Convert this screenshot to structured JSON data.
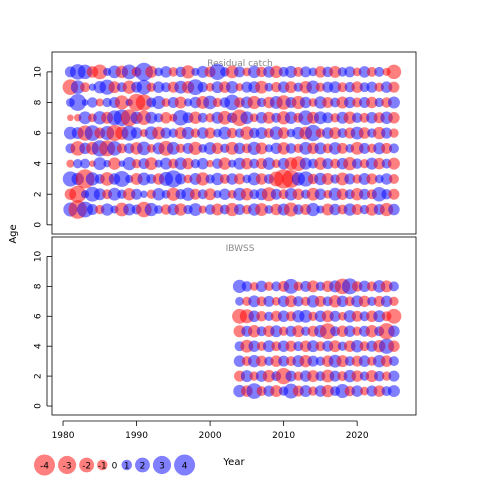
{
  "chart_data": {
    "type": "scatter",
    "variant": "bubble-residuals",
    "xlabel": "Year",
    "ylabel": "Age",
    "xlim": [
      1978.5,
      2028
    ],
    "ylim": [
      -0.6,
      11.3
    ],
    "x_ticks": [
      1980,
      1990,
      2000,
      2010,
      2020
    ],
    "y_ticks": [
      0,
      2,
      4,
      6,
      8,
      10
    ],
    "colors": {
      "positive": "#0000ff",
      "negative": "#ff0000",
      "panel_title": "#888888"
    },
    "panels": [
      {
        "title": "Residual catch",
        "years": [
          1981,
          2025
        ],
        "ages": [
          1,
          10
        ],
        "residuals": [
          [
            1.8,
            -1.2,
            2.1,
            -0.6,
            0.9,
            1.5,
            -0.4,
            0.7,
            -2.2,
            1.1
          ],
          [
            -3.1,
            -2.6,
            1.4,
            0.8,
            -1.9,
            1.3,
            -0.5,
            2.6,
            1.7,
            2.2
          ],
          [
            2.3,
            0.6,
            -3.3,
            0.9,
            1.2,
            -2.1,
            1.5,
            0.4,
            -0.9,
            1.9
          ],
          [
            1.1,
            2.0,
            1.6,
            -0.4,
            -1.5,
            2.2,
            -0.7,
            1.0,
            0.5,
            -1.2
          ],
          [
            -0.8,
            1.3,
            0.9,
            1.5,
            2.4,
            -1.1,
            1.6,
            -0.6,
            1.4,
            -2.0
          ],
          [
            1.4,
            -0.9,
            -1.7,
            0.5,
            -2.3,
            1.8,
            -1.3,
            0.8,
            2.1,
            0.6
          ],
          [
            0.6,
            1.5,
            1.2,
            -1.4,
            1.9,
            -2.4,
            2.0,
            1.1,
            -1.3,
            1.5
          ],
          [
            -1.7,
            0.8,
            2.3,
            0.4,
            -0.9,
            -1.6,
            2.5,
            -1.8,
            0.9,
            -1.4
          ],
          [
            1.3,
            -1.4,
            0.6,
            1.6,
            1.0,
            2.1,
            -2.6,
            0.5,
            -1.6,
            2.0
          ],
          [
            0.9,
            1.1,
            -1.3,
            -0.8,
            -1.4,
            1.2,
            1.4,
            -2.7,
            1.1,
            -0.9
          ],
          [
            -2.2,
            0.5,
            1.5,
            1.1,
            1.7,
            -0.6,
            -1.9,
            -2.4,
            2.0,
            3.0
          ],
          [
            1.6,
            -0.8,
            0.9,
            -1.5,
            -0.7,
            1.6,
            1.3,
            0.9,
            -0.8,
            -1.3
          ],
          [
            0.7,
            1.4,
            -1.2,
            0.6,
            1.3,
            -1.5,
            0.8,
            1.6,
            1.2,
            0.7
          ],
          [
            -1.0,
            0.7,
            1.8,
            1.3,
            -2.0,
            1.1,
            -1.2,
            -0.7,
            0.9,
            1.2
          ],
          [
            1.2,
            -1.6,
            2.7,
            -0.9,
            1.5,
            0.8,
            -0.6,
            1.1,
            -1.1,
            -0.8
          ],
          [
            -1.4,
            1.0,
            1.1,
            1.4,
            -0.8,
            -1.3,
            2.2,
            -1.3,
            1.5,
            1.0
          ],
          [
            0.8,
            1.6,
            -0.7,
            -1.2,
            1.1,
            1.4,
            1.1,
            0.6,
            -1.4,
            -1.6
          ],
          [
            1.5,
            -1.1,
            1.3,
            0.8,
            -1.6,
            -0.8,
            -1.4,
            1.2,
            2.3,
            0.6
          ],
          [
            -0.6,
            0.9,
            -1.6,
            1.2,
            0.7,
            1.2,
            0.9,
            -1.5,
            1.0,
            1.3
          ],
          [
            1.0,
            -1.3,
            0.8,
            -0.5,
            1.4,
            -1.1,
            -0.8,
            1.7,
            -0.7,
            -1.1
          ],
          [
            -1.3,
            0.6,
            1.4,
            1.0,
            -1.2,
            0.7,
            1.3,
            -0.8,
            1.3,
            2.4
          ],
          [
            0.9,
            1.2,
            -0.9,
            -1.4,
            0.8,
            1.5,
            -1.7,
            1.0,
            -1.2,
            0.8
          ],
          [
            -1.6,
            -0.7,
            1.2,
            0.6,
            -1.5,
            -1.0,
            1.0,
            2.2,
            1.4,
            -1.5
          ],
          [
            1.1,
            1.5,
            -1.1,
            1.3,
            1.2,
            0.8,
            -2.5,
            -1.0,
            -0.6,
            1.1
          ],
          [
            -0.8,
            -1.4,
            0.7,
            -1.2,
            -0.9,
            -1.6,
            1.5,
            1.3,
            1.1,
            -0.7
          ],
          [
            1.4,
            0.9,
            1.5,
            0.9,
            1.6,
            1.0,
            -0.7,
            -1.6,
            1.3,
            1.4
          ],
          [
            -1.5,
            1.3,
            -1.2,
            -1.1,
            -1.3,
            1.3,
            1.2,
            0.8,
            -1.5,
            -1.0
          ],
          [
            0.7,
            -1.8,
            0.9,
            1.4,
            0.6,
            -0.9,
            -1.3,
            -1.2,
            0.7,
            1.2
          ],
          [
            -1.2,
            1.1,
            -2.0,
            -0.7,
            1.2,
            1.6,
            0.9,
            1.5,
            -1.0,
            -1.4
          ],
          [
            1.3,
            -0.9,
            -3.4,
            1.2,
            -1.4,
            -1.2,
            -1.6,
            -1.9,
            1.2,
            0.9
          ],
          [
            -1.8,
            1.4,
            -2.9,
            -1.5,
            1.0,
            0.7,
            1.4,
            1.1,
            -1.3,
            1.3
          ],
          [
            1.0,
            -1.2,
            1.6,
            -2.0,
            -0.8,
            1.4,
            -0.9,
            -1.6,
            0.8,
            -0.9
          ],
          [
            -1.1,
            0.8,
            2.1,
            1.3,
            1.5,
            -1.5,
            2.0,
            1.2,
            -1.4,
            1.1
          ],
          [
            1.6,
            -1.5,
            -1.0,
            0.9,
            -1.2,
            2.4,
            -1.3,
            -0.7,
            1.6,
            0.7
          ],
          [
            0.6,
            1.2,
            1.4,
            -1.4,
            1.3,
            -0.8,
            1.5,
            1.4,
            -0.8,
            -1.2
          ],
          [
            -1.3,
            -0.7,
            -1.3,
            1.1,
            -0.9,
            1.2,
            1.1,
            -1.1,
            1.1,
            1.0
          ],
          [
            1.2,
            1.5,
            0.8,
            -0.9,
            1.4,
            -1.3,
            -0.8,
            0.9,
            1.3,
            -1.3
          ],
          [
            -0.9,
            -1.2,
            -1.5,
            1.2,
            -1.1,
            0.9,
            1.3,
            -1.3,
            -0.9,
            0.8
          ],
          [
            1.4,
            0.9,
            1.1,
            -1.6,
            0.7,
            -1.1,
            -1.4,
            1.2,
            1.0,
            1.1
          ],
          [
            -1.1,
            -1.4,
            -0.8,
            1.0,
            -1.5,
            1.5,
            1.0,
            -0.9,
            -1.2,
            -0.7
          ],
          [
            0.8,
            1.1,
            1.3,
            -0.8,
            1.1,
            -1.2,
            -0.9,
            1.1,
            0.9,
            1.2
          ],
          [
            -1.4,
            -0.9,
            -1.1,
            1.3,
            -0.8,
            0.8,
            1.2,
            -1.2,
            1.1,
            -0.9
          ],
          [
            1.1,
            1.9,
            0.7,
            -1.2,
            1.3,
            -1.4,
            -1.1,
            0.8,
            -0.8,
            0.9
          ],
          [
            -1.6,
            1.0,
            1.2,
            0.9,
            -1.1,
            1.1,
            1.4,
            -1.0,
            1.2,
            -0.6
          ],
          [
            1.2,
            -1.1,
            -0.9,
            -1.3,
            0.9,
            -0.8,
            -1.2,
            1.3,
            -1.1,
            -1.9
          ]
        ]
      },
      {
        "title": "IBWSS",
        "years": [
          2004,
          2025
        ],
        "ages": [
          1,
          8
        ],
        "residuals": [
          [
            1.4,
            -1.1,
            1.2,
            0.9,
            -1.3,
            -2.0,
            0.7,
            1.6
          ],
          [
            -1.2,
            1.3,
            -0.9,
            -1.5,
            1.1,
            -1.8,
            -0.8,
            1.0
          ],
          [
            2.2,
            -0.8,
            1.4,
            1.2,
            -1.4,
            1.2,
            1.3,
            -0.7
          ],
          [
            -0.9,
            1.2,
            -1.1,
            -0.8,
            0.9,
            -1.0,
            -0.9,
            1.2
          ],
          [
            1.1,
            -1.4,
            0.8,
            1.3,
            -1.2,
            0.8,
            1.1,
            -0.8
          ],
          [
            -1.3,
            0.9,
            -1.2,
            -0.9,
            1.3,
            -1.1,
            -0.7,
            0.9
          ],
          [
            0.8,
            -2.4,
            1.1,
            1.2,
            -0.8,
            1.2,
            1.2,
            -1.1
          ],
          [
            2.0,
            1.1,
            -0.9,
            -1.1,
            1.1,
            -0.9,
            -1.3,
            2.0
          ],
          [
            -1.1,
            -0.8,
            1.3,
            0.9,
            -1.3,
            1.4,
            1.0,
            -0.8
          ],
          [
            1.3,
            1.2,
            -1.4,
            -1.2,
            0.8,
            1.5,
            -0.8,
            1.1
          ],
          [
            -0.8,
            -1.3,
            1.1,
            1.3,
            -1.1,
            -0.8,
            1.4,
            -1.3
          ],
          [
            1.2,
            0.9,
            0.8,
            -0.9,
            1.4,
            1.2,
            -1.1,
            0.8
          ],
          [
            -1.4,
            -1.5,
            -1.2,
            1.1,
            -2.3,
            -1.3,
            0.9,
            -1.2
          ],
          [
            0.9,
            1.1,
            1.5,
            -1.3,
            0.9,
            1.1,
            -1.4,
            1.3
          ],
          [
            1.8,
            -0.9,
            -1.3,
            0.8,
            -1.2,
            -0.7,
            1.2,
            -2.2
          ],
          [
            -1.0,
            1.4,
            0.9,
            -1.2,
            1.2,
            1.4,
            -0.9,
            2.3
          ],
          [
            1.2,
            -1.2,
            -1.1,
            1.4,
            -0.8,
            -1.1,
            1.3,
            -1.0
          ],
          [
            -0.7,
            0.8,
            1.2,
            -0.9,
            1.1,
            0.9,
            -1.2,
            1.2
          ],
          [
            1.1,
            -1.3,
            -0.8,
            1.1,
            -1.4,
            -1.2,
            0.8,
            -0.9
          ],
          [
            -1.2,
            1.0,
            1.4,
            -1.4,
            0.9,
            1.3,
            -1.1,
            1.4
          ],
          [
            0.9,
            -0.8,
            -1.2,
            2.1,
            -2.4,
            -0.9,
            1.2,
            -1.3
          ],
          [
            1.3,
            1.1,
            0.9,
            -1.2,
            1.2,
            -2.0,
            -0.8,
            0.9
          ]
        ]
      }
    ],
    "legend": {
      "placement": "bottom-left",
      "labels": [
        "-4",
        "-3",
        "-2",
        "-1",
        "0",
        "1",
        "2",
        "3",
        "4"
      ]
    }
  }
}
